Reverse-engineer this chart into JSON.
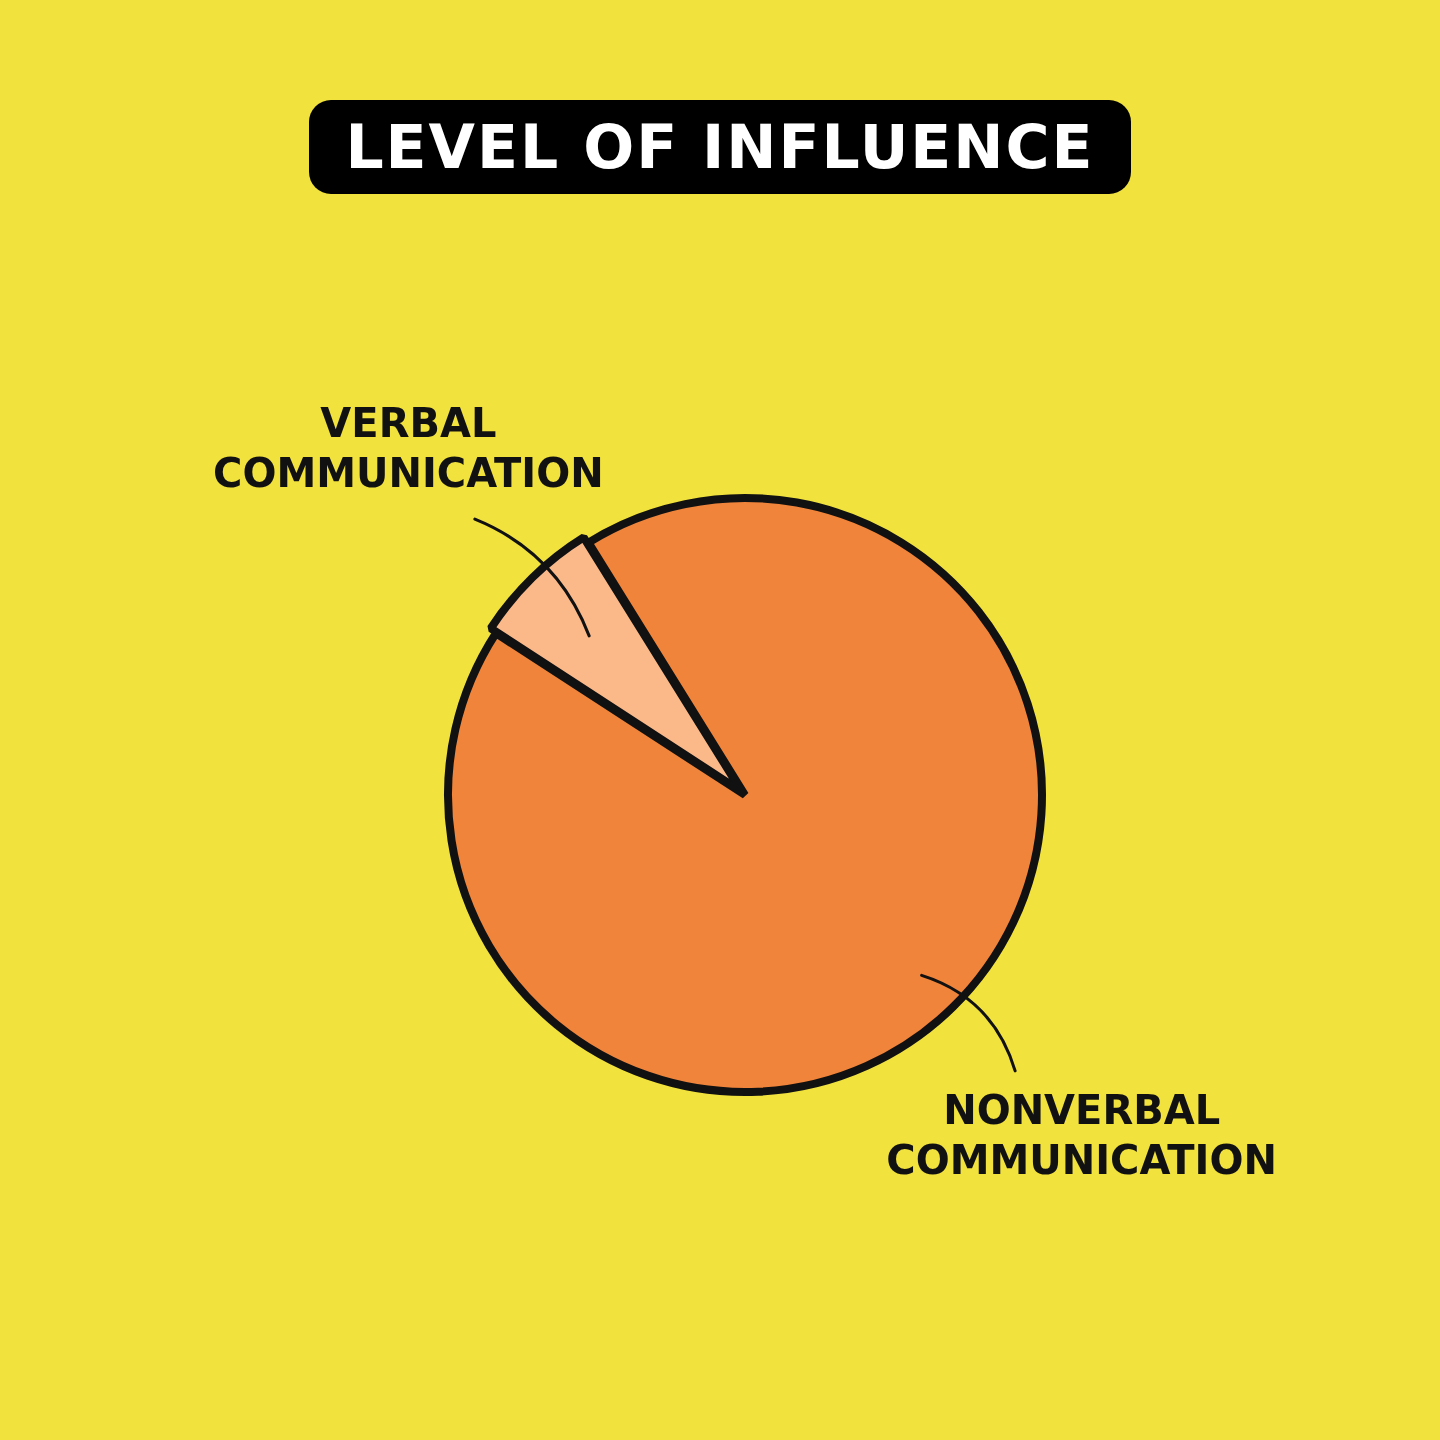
{
  "chart_data": {
    "type": "pie",
    "title": "LEVEL OF INFLUENCE",
    "categories": [
      "VERBAL COMMUNICATION",
      "NONVERBAL COMMUNICATION"
    ],
    "values": [
      7,
      93
    ],
    "colors": [
      "#fbb98a",
      "#f0843a"
    ]
  }
}
